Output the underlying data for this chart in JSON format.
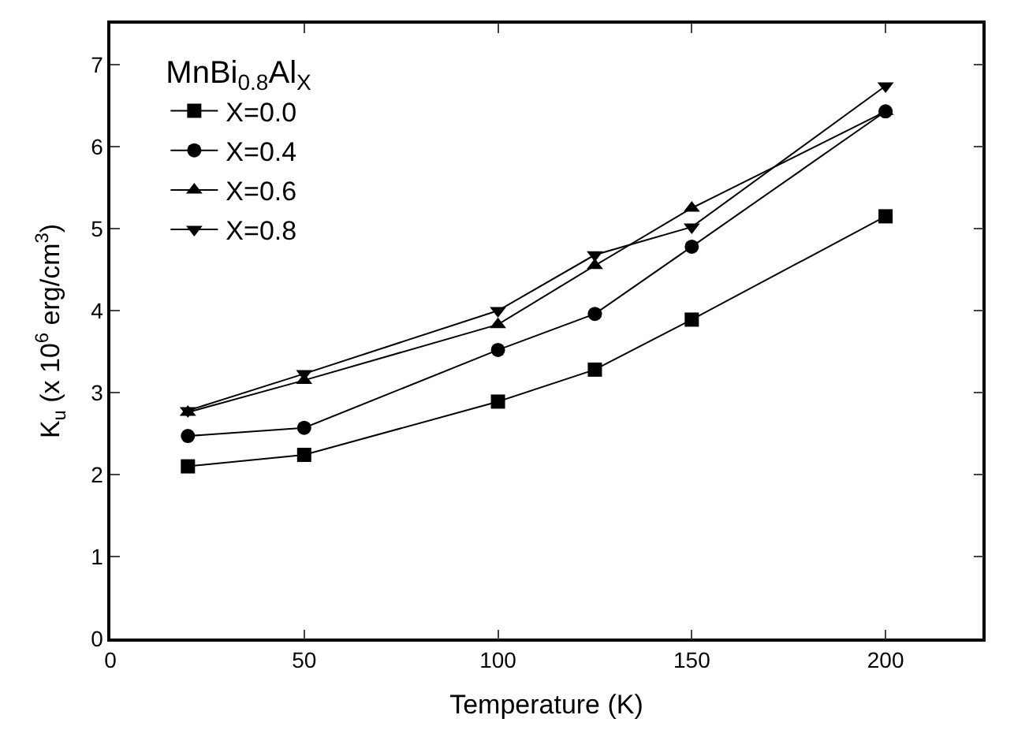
{
  "chart_data": {
    "type": "line",
    "xlabel": "Temperature (K)",
    "ylabel": "K$_{u}$ (x 10$^{6}$ erg/cm$^{3}$)",
    "legend_title": "MnBi$_{0.8}$Al$_{X}$",
    "x": [
      20,
      50,
      100,
      125,
      150,
      200
    ],
    "series": [
      {
        "name": "X=0.0",
        "color": "#000000",
        "marker": "square",
        "values": [
          2.1,
          2.24,
          2.89,
          3.28,
          3.89,
          5.15
        ]
      },
      {
        "name": "X=0.4",
        "color": "#000000",
        "marker": "circle",
        "values": [
          2.47,
          2.57,
          3.52,
          3.96,
          4.78,
          6.43
        ]
      },
      {
        "name": "X=0.6",
        "color": "#000000",
        "marker": "triangle",
        "values": [
          2.76,
          3.15,
          3.83,
          4.55,
          5.25,
          6.43
        ]
      },
      {
        "name": "X=0.8",
        "color": "#000000",
        "marker": "triangle-down",
        "values": [
          2.78,
          3.23,
          4.0,
          4.68,
          5.02,
          6.74
        ]
      }
    ],
    "xlim": [
      0,
      225
    ],
    "xticks": [
      0,
      50,
      100,
      150,
      200
    ],
    "ylim": [
      0,
      7.5
    ],
    "yticks": [
      0,
      1,
      2,
      3,
      4,
      5,
      6,
      7
    ],
    "legend": "top left",
    "line_style": "solid"
  }
}
